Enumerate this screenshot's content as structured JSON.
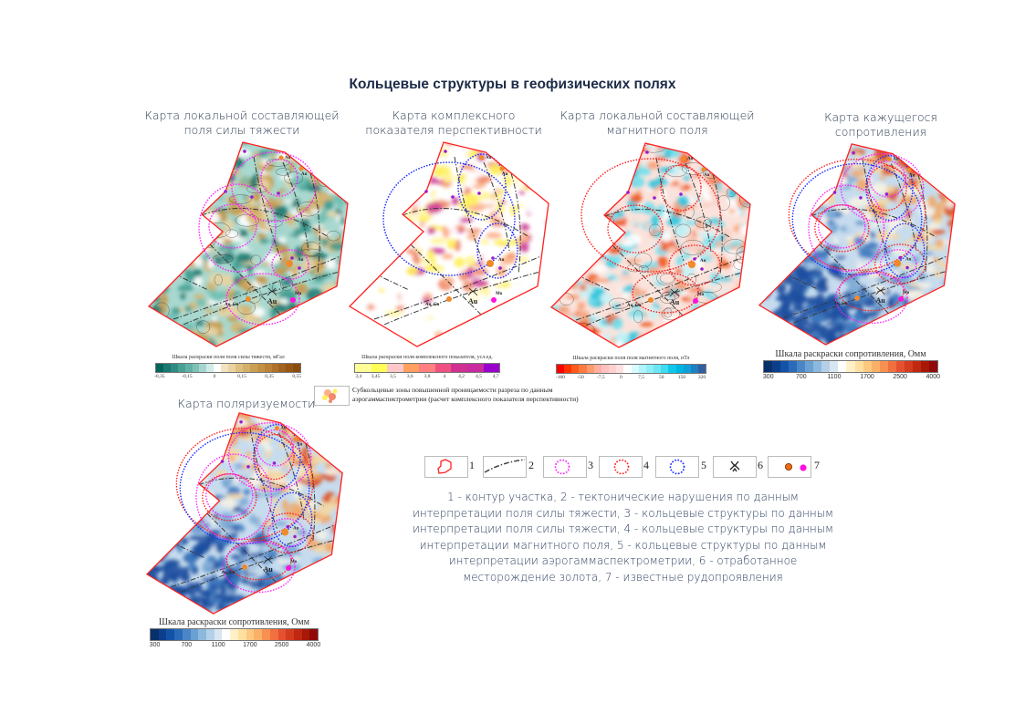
{
  "title": "Кольцевые структуры в геофизических полях",
  "map_labels": {
    "au": "Au",
    "mo": "Mo",
    "au_cu": "Au, Cu"
  },
  "maps": [
    {
      "id": "gravity",
      "title": [
        "Карта локальной составляющей",
        "поля силы тяжести"
      ],
      "palette": [
        "#1f7a70",
        "#3b9a8e",
        "#6fbfb3",
        "#a8d8cf",
        "#ffffff",
        "#e8d4a4",
        "#d6b46e",
        "#c59a4a"
      ],
      "colorbar": {
        "title": "Шкала раскраски поля поля силы тяжести, мГал",
        "colors": [
          "#00665c",
          "#1a7a70",
          "#2f8c82",
          "#48a095",
          "#62b0a5",
          "#7ec2b7",
          "#a3d6ce",
          "#d0ece7",
          "#ffffff",
          "#f2e3c0",
          "#e9d39f",
          "#ddc07e",
          "#d3b067",
          "#cba055",
          "#c29145",
          "#b98238",
          "#ae722b",
          "#a26321",
          "#965716",
          "#8a4c0e"
        ],
        "ticks": [
          "-0,35",
          "-0,15",
          "0",
          "0,15",
          "0,35",
          "0,55"
        ]
      }
    },
    {
      "id": "complex",
      "title": [
        "Карта комплексного",
        "показателя перспективности"
      ],
      "palette": [
        "#ffffff",
        "#ffffff",
        "#ffffff",
        "#fff59a",
        "#ffef5a",
        "#fbb08a",
        "#f08a6a",
        "#d2409a"
      ],
      "colorbar": {
        "title": "Шкала раскраски поля комплексного показателя, усл.ед.",
        "colors": [
          "#ffff99",
          "#ffff55",
          "#ffc8c8",
          "#ff9f60",
          "#ff8080",
          "#f05080",
          "#d03090",
          "#c82aa0",
          "#9900cc"
        ],
        "ticks": [
          "3,4",
          "3,45",
          "3,5",
          "3,6",
          "3,8",
          "4",
          "4,2",
          "4,5",
          "4,7"
        ]
      }
    },
    {
      "id": "magnetic",
      "title": [
        "Карта локальной составляющей",
        "магнитного поля"
      ],
      "palette": [
        "#f05a1a",
        "#f7a27a",
        "#f9cfc2",
        "#fbe3dc",
        "#ffffff",
        "#c8f2f6",
        "#6fe0ee",
        "#2cc6de"
      ],
      "colorbar": {
        "title": "Шкала раскраски поля поля магнитного поля, нТл",
        "colors": [
          "#ff0000",
          "#ff3300",
          "#ff5a1a",
          "#ff7a40",
          "#ff9a70",
          "#ffb0a0",
          "#ffc0c0",
          "#ffd0d0",
          "#ffe0e0",
          "#ffffff",
          "#d8fbff",
          "#b0f4fb",
          "#8eeef8",
          "#6ae6f4",
          "#40dcf0",
          "#10c8ec",
          "#00b4e4",
          "#0ea0d8",
          "#2080c0",
          "#3060a0"
        ],
        "ticks": [
          "-160",
          "-50",
          "-7,5",
          "0",
          "7,5",
          "50",
          "150",
          "320"
        ]
      }
    },
    {
      "id": "resistivity",
      "title": [
        "Карта кажущегося",
        "сопротивления"
      ],
      "palette": [
        "#1e4fa0",
        "#3f7ac0",
        "#7eabd6",
        "#c6dcee",
        "#f6f2e6",
        "#f4d7a4",
        "#efa868",
        "#d9532a"
      ],
      "colorbar": {
        "title": "Шкала раскраски сопротивления, Омм",
        "colors": [
          "#08306b",
          "#0b3f8c",
          "#1452a8",
          "#2a6ab8",
          "#4a86c6",
          "#6aa0d2",
          "#8cb8de",
          "#b4d0e8",
          "#d8e6f2",
          "#ffffff",
          "#fff0c8",
          "#ffe0a0",
          "#fdc880",
          "#fbb068",
          "#f79050",
          "#f07040",
          "#e55030",
          "#d43c20",
          "#c02810",
          "#a81808",
          "#900808"
        ],
        "ticks": [
          "300",
          "700",
          "1100",
          "1700",
          "2500",
          "4000"
        ]
      }
    },
    {
      "id": "polarization",
      "title": [
        "Карта поляризуемости"
      ],
      "palette": [
        "#1e4fa0",
        "#3f7ac0",
        "#7eabd6",
        "#c6dcee",
        "#f6f2e6",
        "#f4d7a4",
        "#efa868",
        "#d9532a"
      ],
      "colorbar": {
        "title": "Шкала раскраски сопротивления, Омм",
        "colors": [
          "#08306b",
          "#0b3f8c",
          "#1452a8",
          "#2a6ab8",
          "#4a86c6",
          "#6aa0d2",
          "#8cb8de",
          "#b4d0e8",
          "#d8e6f2",
          "#ffffff",
          "#fff0c8",
          "#ffe0a0",
          "#fdc880",
          "#fbb068",
          "#f79050",
          "#f07040",
          "#e55030",
          "#d43c20",
          "#c02810",
          "#a81808",
          "#900808"
        ],
        "ticks": [
          "300",
          "700",
          "1100",
          "1700",
          "2500",
          "4000"
        ]
      }
    }
  ],
  "subring_note": [
    "Субкольцевые зоны повышенной проницаемости разреза по данным",
    "аэрогаммаспектрометрии (расчет комплексного показателя перспективности)"
  ],
  "legend": {
    "items": [
      {
        "num": "1",
        "icon": "contour-icon"
      },
      {
        "num": "2",
        "icon": "fault-line-icon"
      },
      {
        "num": "3",
        "icon": "magenta-ring-icon"
      },
      {
        "num": "4",
        "icon": "red-ring-icon"
      },
      {
        "num": "5",
        "icon": "blue-ring-icon"
      },
      {
        "num": "6",
        "icon": "gold-mine-icon"
      },
      {
        "num": "7",
        "icon": "ore-occurrence-icon"
      }
    ],
    "description": [
      "1 - контур участка, 2 - тектонические нарушения по данным",
      "интерпретации поля силы тяжести, 3 - кольцевые структуры по данным",
      "интерпретации поля силы тяжести, 4 - кольцевые структуры по данным",
      "интерпретации магнитного поля, 5 - кольцевые структуры по данным",
      "интерпретации аэрогаммаспектрометрии, 6 - отработанное",
      "месторождение золота, 7 - известные рудопроявления"
    ]
  },
  "colors": {
    "contour": "#ff2020",
    "magenta": "#ff22ff",
    "red": "#ff2020",
    "blue": "#1a2cff",
    "orange": "#f08a2a",
    "purple": "#9a1ad0",
    "mo": "#ff10e0"
  }
}
